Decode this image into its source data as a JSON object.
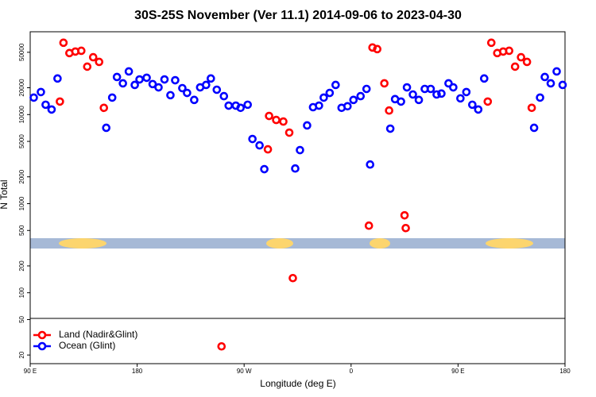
{
  "chart_data": {
    "type": "scatter",
    "title": "30S-25S November (Ver 11.1)   2014-09-06 to 2023-04-30",
    "xlabel": "Longitude (deg E)",
    "ylabel": "N Total",
    "yscale": "log",
    "legend": "lower left",
    "grid": false,
    "xlim": [
      90,
      540
    ],
    "ylim": [
      16,
      85000
    ],
    "xticks": [
      {
        "value": 90,
        "label": "90 E"
      },
      180,
      {
        "value": 270,
        "label": "90 W"
      },
      {
        "value": 360,
        "label": "0"
      },
      {
        "value": 450,
        "label": "90 E"
      },
      {
        "value": 540,
        "label": "180"
      }
    ],
    "yticks": [
      20,
      50,
      100,
      200,
      500,
      1000,
      2000,
      5000,
      10000,
      20000,
      50000
    ],
    "series": [
      {
        "name": "Land (Nadir&Glint)",
        "color": "#ff0000",
        "x": [
          115,
          118,
          123,
          128,
          133,
          138,
          143,
          148,
          152,
          290,
          291,
          297,
          303,
          308,
          311,
          251,
          375,
          378,
          382,
          388,
          392,
          405,
          406,
          475,
          478,
          483,
          488,
          493,
          498,
          503,
          508,
          512
        ],
        "values": [
          14000,
          64000,
          49000,
          51000,
          52000,
          34500,
          44000,
          39000,
          11900,
          4070,
          9650,
          8700,
          8350,
          6270,
          146,
          25,
          566,
          56600,
          54300,
          22400,
          11100,
          740,
          532,
          14000,
          64000,
          49000,
          51000,
          52000,
          34500,
          44000,
          39000,
          11900
        ]
      },
      {
        "name": "Ocean (Glint)",
        "color": "#0000ff",
        "x": [
          93,
          99,
          103,
          108,
          113,
          154,
          159,
          163,
          168,
          173,
          178,
          182,
          188,
          193,
          198,
          203,
          208,
          212,
          218,
          222,
          228,
          233,
          238,
          242,
          247,
          253,
          257,
          263,
          267,
          273,
          277,
          283,
          287,
          313,
          317,
          323,
          328,
          333,
          337,
          342,
          347,
          352,
          357,
          362,
          368,
          373,
          376,
          393,
          397,
          402,
          407,
          412,
          417,
          422,
          427,
          432,
          436,
          442,
          446,
          452,
          457,
          462,
          467,
          472,
          514,
          519,
          523,
          528,
          533,
          538
        ],
        "values": [
          15500,
          17900,
          12900,
          11400,
          25400,
          7100,
          15500,
          26400,
          22400,
          30500,
          21500,
          24800,
          25900,
          22000,
          20200,
          24800,
          16500,
          24300,
          19800,
          17500,
          14600,
          20200,
          21500,
          25400,
          19000,
          16100,
          12600,
          12600,
          11900,
          12900,
          5320,
          4510,
          2440,
          2480,
          3990,
          7550,
          12100,
          12600,
          15500,
          17500,
          21500,
          11900,
          12400,
          14600,
          16100,
          19400,
          2750,
          6950,
          14900,
          14000,
          20200,
          16800,
          14600,
          19400,
          19400,
          16800,
          17200,
          22400,
          20200,
          15200,
          17900,
          12900,
          11400,
          25400,
          7100,
          15500,
          26400,
          22400,
          30500,
          21500
        ]
      }
    ]
  }
}
